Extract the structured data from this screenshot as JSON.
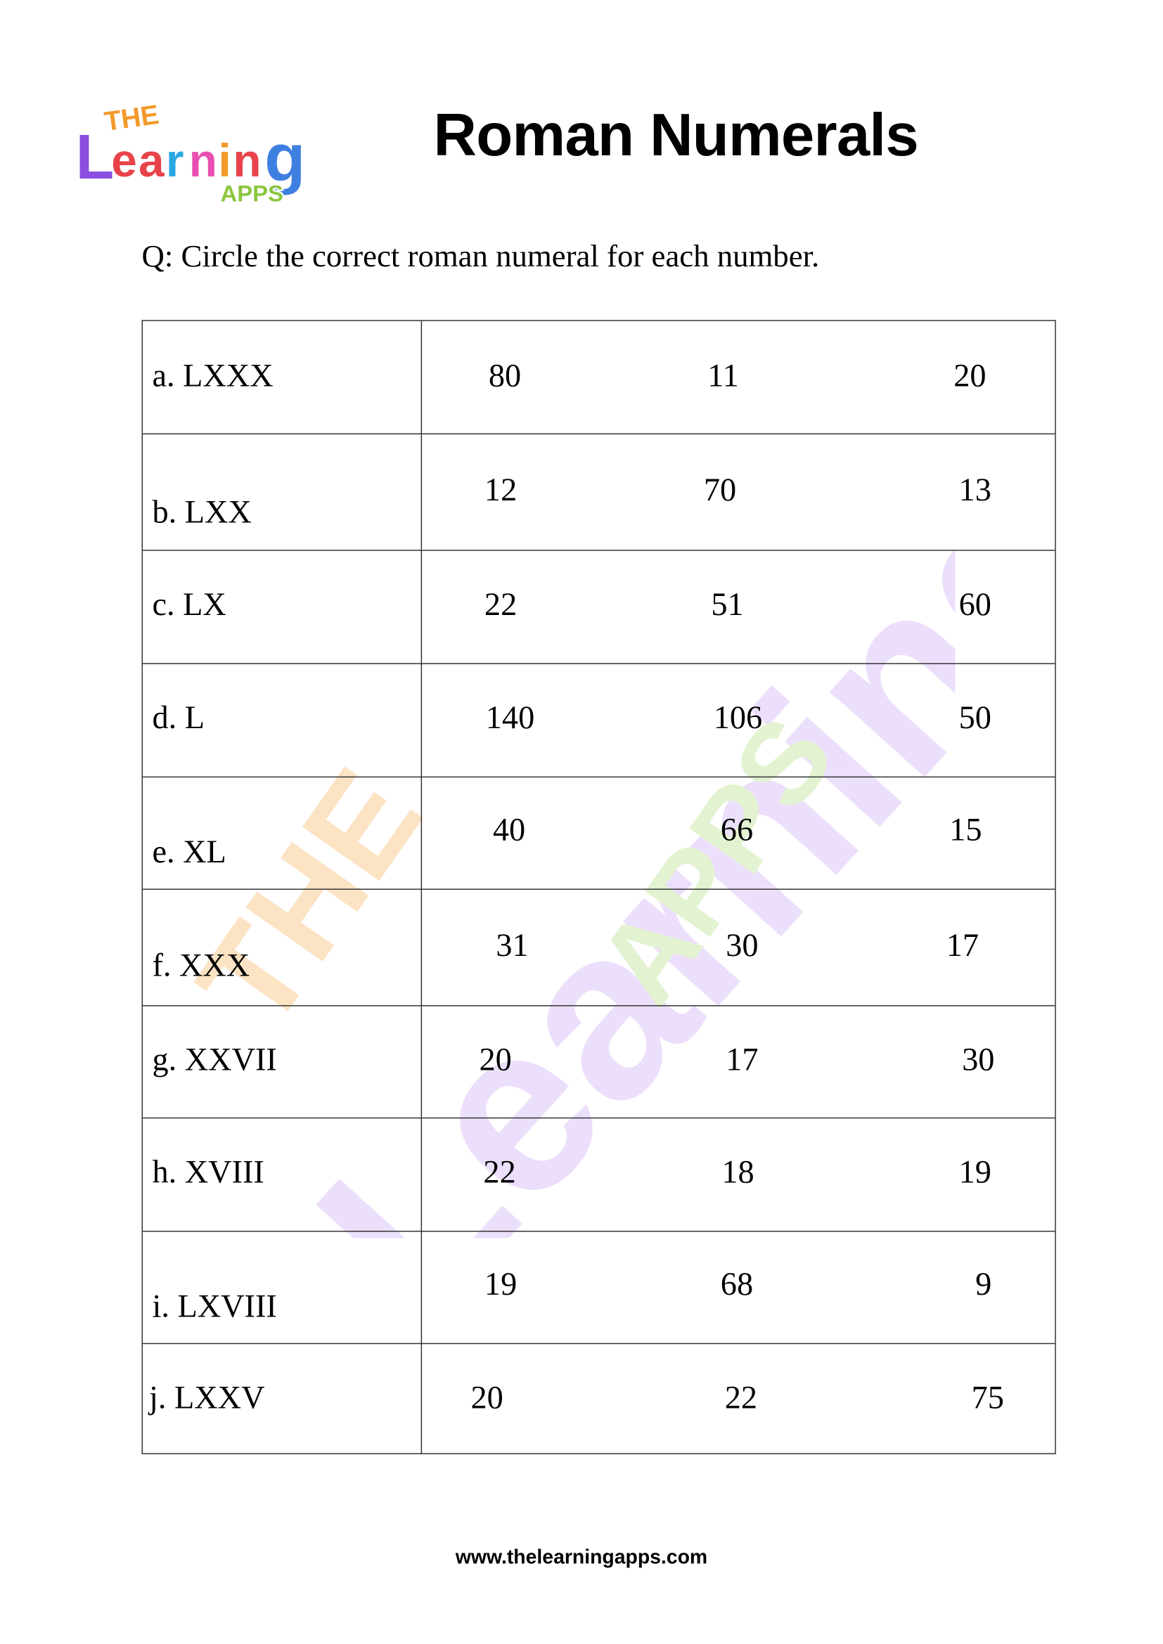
{
  "logo": {
    "text": "THE Learning APPS"
  },
  "title": "Roman Numerals",
  "question": "Q: Circle the correct roman numeral for each number.",
  "rows": [
    {
      "label": "a. LXXX",
      "options": [
        "80",
        "11",
        "20"
      ]
    },
    {
      "label": "b. LXX",
      "options": [
        "12",
        "70",
        "13"
      ]
    },
    {
      "label": "c. LX",
      "options": [
        "22",
        "51",
        "60"
      ]
    },
    {
      "label": "d. L",
      "options": [
        "140",
        "106",
        "50"
      ]
    },
    {
      "label": "e. XL",
      "options": [
        "40",
        "66",
        "15"
      ]
    },
    {
      "label": "f. XXX",
      "options": [
        "31",
        "30",
        "17"
      ]
    },
    {
      "label": "g. XXVII",
      "options": [
        "20",
        "17",
        "30"
      ]
    },
    {
      "label": "h. XVIII",
      "options": [
        "22",
        "18",
        "19"
      ]
    },
    {
      "label": "i. LXVIII",
      "options": [
        "19",
        "68",
        "9"
      ]
    },
    {
      "label": "j. LXXV",
      "options": [
        "20",
        "22",
        "75"
      ]
    }
  ],
  "footer": "www.thelearningapps.com",
  "colors": {
    "purple": "#8a4fe0",
    "orange": "#f39a2b",
    "red": "#e8434a",
    "blue": "#3f7fe0",
    "green": "#8cc63f",
    "pink": "#e94fb0"
  }
}
